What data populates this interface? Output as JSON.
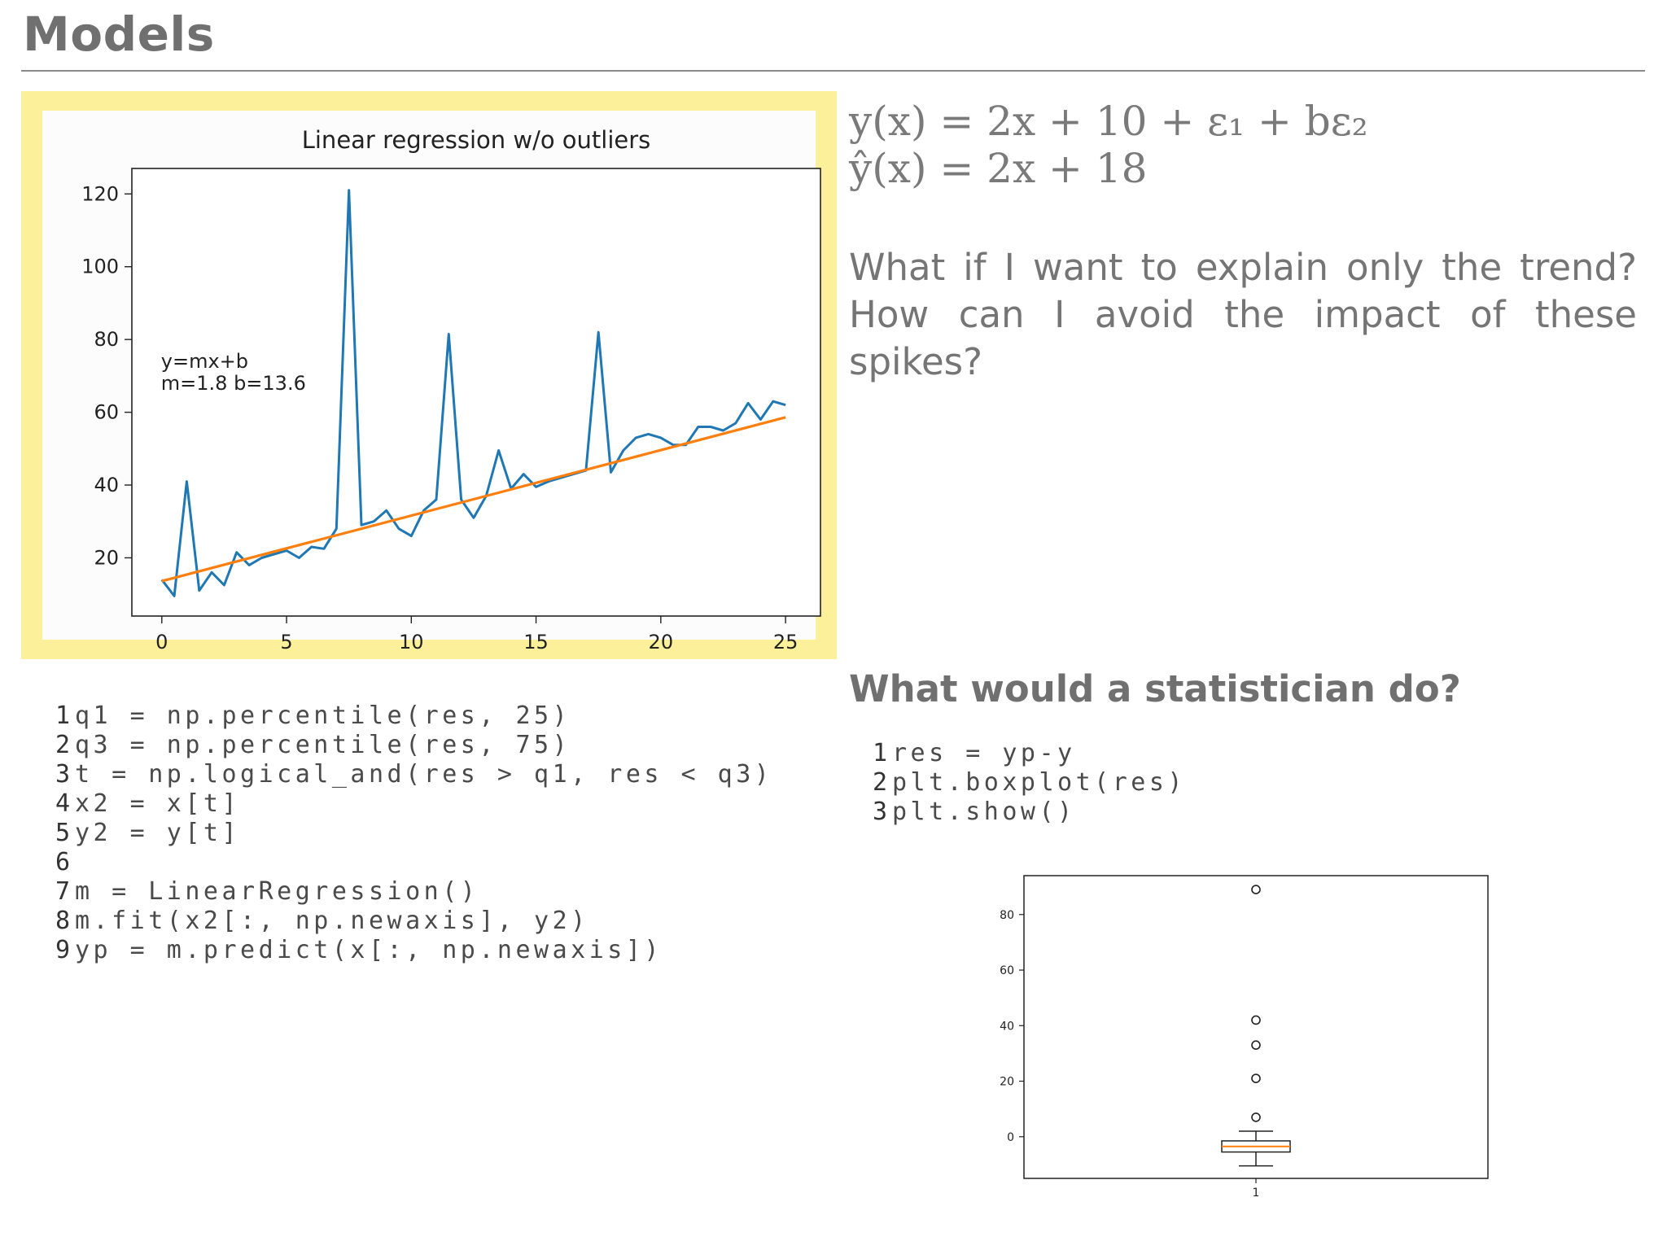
{
  "slide": {
    "title": "Models"
  },
  "equations": {
    "line1": "y(x) = 2x + 10 + ε₁ + bε₂",
    "line2": "ŷ(x) = 2x + 18"
  },
  "question": {
    "line1": "What if I want to explain only the trend?",
    "line2": "How can I avoid the impact of these spikes?"
  },
  "statistician_heading": "What would a statistician do?",
  "code_left": [
    {
      "n": "1",
      "text": "q1 = np.percentile(res, 25)"
    },
    {
      "n": "2",
      "text": "q3 = np.percentile(res, 75)"
    },
    {
      "n": "3",
      "text": "t = np.logical_and(res > q1, res < q3)"
    },
    {
      "n": "4",
      "text": "x2 = x[t]"
    },
    {
      "n": "5",
      "text": "y2 = y[t]"
    },
    {
      "n": "6",
      "text": ""
    },
    {
      "n": "7",
      "text": "m = LinearRegression()"
    },
    {
      "n": "8",
      "text": "m.fit(x2[:, np.newaxis], y2)"
    },
    {
      "n": "9",
      "text": "yp = m.predict(x[:, np.newaxis])"
    }
  ],
  "code_right": [
    {
      "n": "1",
      "text": "res = yp-y"
    },
    {
      "n": "2",
      "text": "plt.boxplot(res)"
    },
    {
      "n": "3",
      "text": "plt.show()"
    }
  ],
  "chart_data": [
    {
      "type": "line",
      "title": "Linear regression w/o outliers",
      "xlabel": "",
      "ylabel": "",
      "xlim": [
        -1.2,
        26.4
      ],
      "ylim": [
        4,
        127
      ],
      "xticks": [
        0,
        5,
        10,
        15,
        20,
        25
      ],
      "yticks": [
        20,
        40,
        60,
        80,
        100,
        120
      ],
      "grid": false,
      "annotation": [
        "y=mx+b",
        "m=1.8 b=13.6"
      ],
      "colors": {
        "data": "#1f77b4",
        "fit": "#ff7f0e"
      },
      "series": [
        {
          "x": [
            0,
            0.5,
            1,
            1.5,
            2,
            2.5,
            3,
            3.5,
            4,
            4.5,
            5,
            5.5,
            6,
            6.5,
            7,
            7.5,
            8,
            8.5,
            9,
            9.5,
            10,
            10.5,
            11,
            11.5,
            12,
            12.5,
            13,
            13.5,
            14,
            14.5,
            15,
            15.5,
            16,
            16.5,
            17,
            17.5,
            18,
            18.5,
            19,
            19.5,
            20,
            20.5,
            21,
            21.5,
            22,
            22.5,
            23,
            23.5,
            24,
            24.5,
            25
          ],
          "y": [
            14,
            9.5,
            41,
            11,
            16,
            12.5,
            21.5,
            18,
            20,
            21,
            22,
            20,
            23,
            22.5,
            28,
            121,
            29,
            30,
            33,
            28,
            26,
            33,
            36,
            81.5,
            36,
            31,
            37,
            49.5,
            39,
            43,
            39.5,
            41,
            42,
            43,
            44,
            82,
            43.5,
            49.5,
            53,
            54,
            53,
            51,
            51,
            56,
            56,
            55,
            57,
            62.5,
            58,
            63,
            62
          ]
        },
        {
          "x": [
            0,
            25
          ],
          "y": [
            13.6,
            58.6
          ]
        }
      ]
    },
    {
      "type": "boxplot",
      "title": "",
      "xlabel": "",
      "ylabel": "",
      "categories": [
        "1"
      ],
      "yticks": [
        0,
        20,
        40,
        60,
        80
      ],
      "ylim": [
        -15,
        94
      ],
      "box": {
        "whisker_low": -10.5,
        "q1": -5.5,
        "median": -3.5,
        "q3": -1.5,
        "whisker_high": 2
      },
      "outliers": [
        89,
        42,
        33,
        21,
        7
      ],
      "colors": {
        "median": "#ff7f0e"
      }
    }
  ]
}
